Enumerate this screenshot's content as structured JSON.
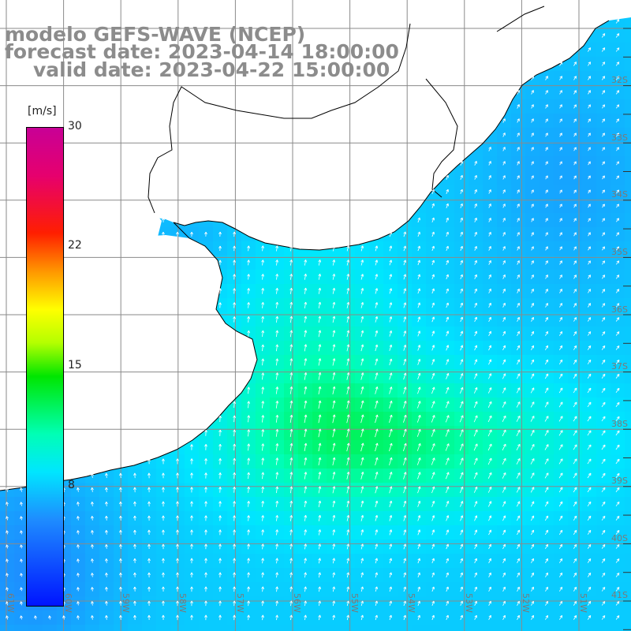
{
  "title": {
    "line1": "modelo GEFS-WAVE (NCEP)",
    "line2": "forecast date: 2023-04-14 18:00:00",
    "line3": "valid date: 2023-04-22 15:00:00"
  },
  "colorbar": {
    "unit": "[m/s]",
    "ticks": [
      "30",
      "22",
      "15",
      "8"
    ],
    "tick_values": [
      30,
      22,
      15,
      8
    ],
    "range": [
      0,
      30
    ],
    "colors": [
      "#0014ff",
      "#1e8cff",
      "#00e6ff",
      "#00ffb4",
      "#00e600",
      "#b4ff00",
      "#ffff00",
      "#ff9600",
      "#ff1e00",
      "#e6006e",
      "#c80096"
    ]
  },
  "lat_labels": [
    "32S",
    "33S",
    "34S",
    "35S",
    "36S",
    "37S",
    "38S",
    "39S",
    "40S",
    "41S"
  ],
  "lon_labels": [
    "61W",
    "60W",
    "59W",
    "58W",
    "57W",
    "56W",
    "55W",
    "54W",
    "53W",
    "52W",
    "51W"
  ],
  "colors": {
    "land": "#ffffff",
    "coastline": "#000000",
    "grid": "#888888",
    "title": "#8c8c8c",
    "arrows": "#ffffff"
  }
}
